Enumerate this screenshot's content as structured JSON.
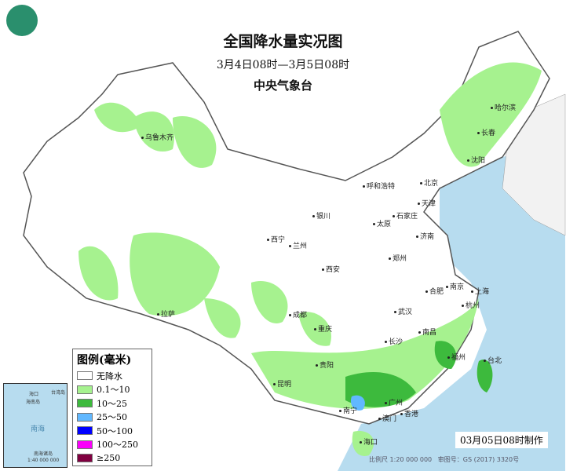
{
  "header": {
    "title": "全国降水量实况图",
    "period": "3月4日08时—3月5日08时",
    "issuer": "中央气象台"
  },
  "legend": {
    "title": "图例(毫米)",
    "items": [
      {
        "label": "无降水",
        "color": "#ffffff"
      },
      {
        "label": "0.1～10",
        "color": "#a6f28f"
      },
      {
        "label": "10～25",
        "color": "#3dba3d"
      },
      {
        "label": "25～50",
        "color": "#61b8ff"
      },
      {
        "label": "50～100",
        "color": "#0000ff"
      },
      {
        "label": "100～250",
        "color": "#fa00fa"
      },
      {
        "label": "≥250",
        "color": "#800040"
      }
    ]
  },
  "cities": [
    "哈尔滨",
    "长春",
    "沈阳",
    "北京",
    "天津",
    "呼和浩特",
    "石家庄",
    "太原",
    "济南",
    "银川",
    "西宁",
    "兰州",
    "西安",
    "郑州",
    "合肥",
    "南京",
    "上海",
    "杭州",
    "武汉",
    "成都",
    "重庆",
    "长沙",
    "南昌",
    "拉萨",
    "贵阳",
    "昆明",
    "南宁",
    "广州",
    "澳门",
    "香港",
    "福州",
    "台北",
    "海口",
    "乌鲁木齐"
  ],
  "footer": {
    "made_at": "03月05日08时制作",
    "scale": "比例尺 1:20 000 000",
    "approval": "审图号：GS (2017) 3320号"
  },
  "inset": {
    "labels": [
      "海口",
      "海南岛",
      "台湾岛",
      "南海",
      "南海诸岛",
      "1:40 000 000"
    ]
  },
  "colors": {
    "sea": "#b7dcef",
    "land": "#ffffff",
    "outside_land": "#f2f2f2"
  }
}
